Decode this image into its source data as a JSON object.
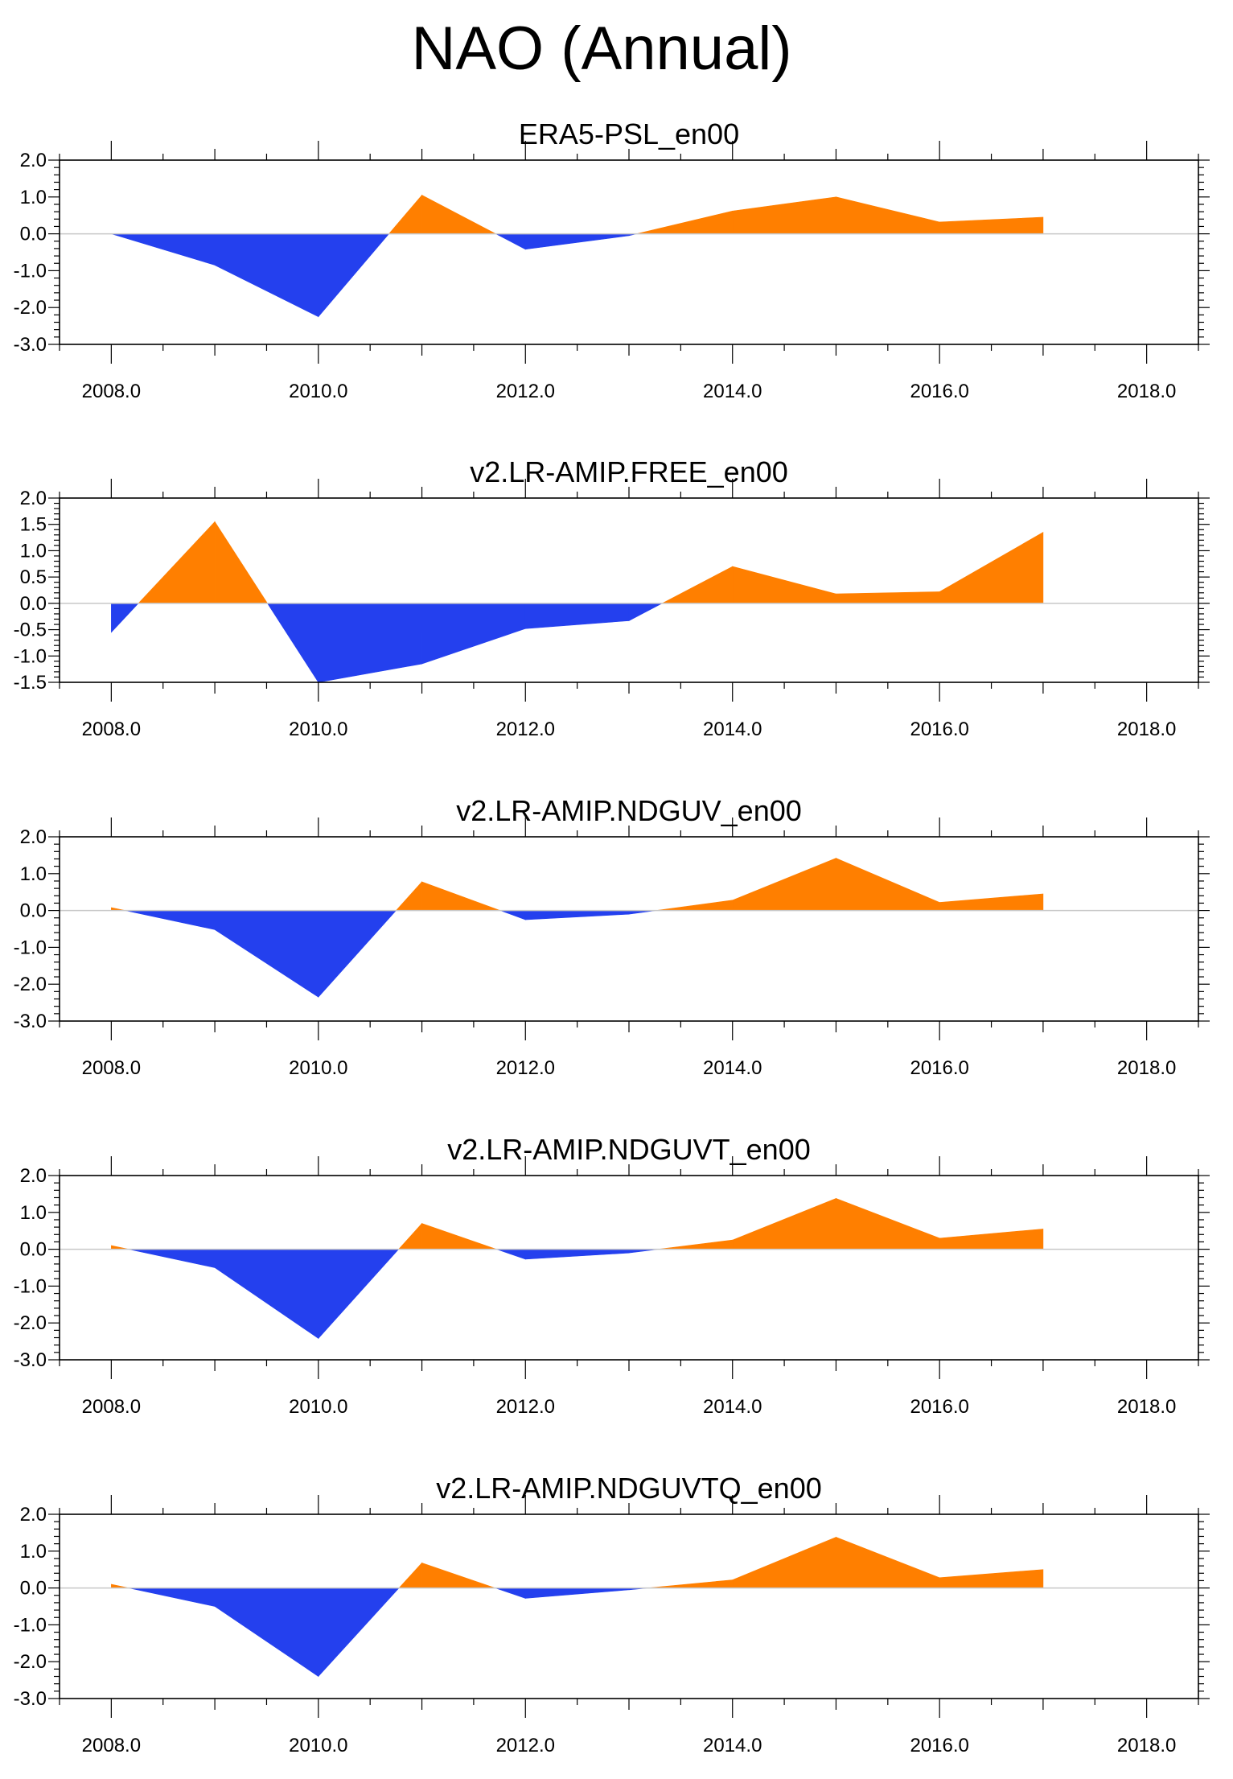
{
  "title": "NAO (Annual)",
  "colors": {
    "positive": "#ff7f00",
    "negative": "#2440ee",
    "zero_line": "#c8c8c8",
    "axis": "#000000"
  },
  "chart_data": [
    {
      "type": "area",
      "title": "ERA5-PSL_en00",
      "xlabel": "",
      "ylabel": "",
      "xlim": [
        2007.5,
        2018.5
      ],
      "ylim": [
        -3.0,
        2.0
      ],
      "x": [
        2008,
        2009,
        2010,
        2011,
        2012,
        2013,
        2014,
        2015,
        2016,
        2017
      ],
      "values": [
        0.0,
        -0.85,
        -2.25,
        1.05,
        -0.42,
        -0.05,
        0.62,
        1.0,
        0.32,
        0.45
      ],
      "yticks": [
        "2.0",
        "1.0",
        "0.0",
        "-1.0",
        "-2.0",
        "-3.0"
      ],
      "xticks": [
        "2008.0",
        "2010.0",
        "2012.0",
        "2014.0",
        "2016.0",
        "2018.0"
      ]
    },
    {
      "type": "area",
      "title": "v2.LR-AMIP.FREE_en00",
      "xlabel": "",
      "ylabel": "",
      "xlim": [
        2007.5,
        2018.5
      ],
      "ylim": [
        -1.5,
        2.0
      ],
      "x": [
        2008,
        2009,
        2010,
        2011,
        2012,
        2013,
        2014,
        2015,
        2016,
        2017
      ],
      "values": [
        -0.55,
        1.55,
        -1.5,
        -1.15,
        -0.48,
        -0.33,
        0.7,
        0.18,
        0.22,
        1.35
      ],
      "yticks": [
        "2.0",
        "1.5",
        "1.0",
        "0.5",
        "0.0",
        "-0.5",
        "-1.0",
        "-1.5"
      ],
      "xticks": [
        "2008.0",
        "2010.0",
        "2012.0",
        "2014.0",
        "2016.0",
        "2018.0"
      ]
    },
    {
      "type": "area",
      "title": "v2.LR-AMIP.NDGUV_en00",
      "xlabel": "",
      "ylabel": "",
      "xlim": [
        2007.5,
        2018.5
      ],
      "ylim": [
        -3.0,
        2.0
      ],
      "x": [
        2008,
        2009,
        2010,
        2011,
        2012,
        2013,
        2014,
        2015,
        2016,
        2017
      ],
      "values": [
        0.08,
        -0.52,
        -2.35,
        0.78,
        -0.25,
        -0.1,
        0.28,
        1.42,
        0.22,
        0.45
      ],
      "yticks": [
        "2.0",
        "1.0",
        "0.0",
        "-1.0",
        "-2.0",
        "-3.0"
      ],
      "xticks": [
        "2008.0",
        "2010.0",
        "2012.0",
        "2014.0",
        "2016.0",
        "2018.0"
      ]
    },
    {
      "type": "area",
      "title": "v2.LR-AMIP.NDGUVT_en00",
      "xlabel": "",
      "ylabel": "",
      "xlim": [
        2007.5,
        2018.5
      ],
      "ylim": [
        -3.0,
        2.0
      ],
      "x": [
        2008,
        2009,
        2010,
        2011,
        2012,
        2013,
        2014,
        2015,
        2016,
        2017
      ],
      "values": [
        0.1,
        -0.5,
        -2.42,
        0.7,
        -0.27,
        -0.1,
        0.25,
        1.38,
        0.3,
        0.55
      ],
      "yticks": [
        "2.0",
        "1.0",
        "0.0",
        "-1.0",
        "-2.0",
        "-3.0"
      ],
      "xticks": [
        "2008.0",
        "2010.0",
        "2012.0",
        "2014.0",
        "2016.0",
        "2018.0"
      ]
    },
    {
      "type": "area",
      "title": "v2.LR-AMIP.NDGUVTQ_en00",
      "xlabel": "",
      "ylabel": "",
      "xlim": [
        2007.5,
        2018.5
      ],
      "ylim": [
        -3.0,
        2.0
      ],
      "x": [
        2008,
        2009,
        2010,
        2011,
        2012,
        2013,
        2014,
        2015,
        2016,
        2017
      ],
      "values": [
        0.1,
        -0.5,
        -2.4,
        0.68,
        -0.28,
        -0.05,
        0.22,
        1.38,
        0.28,
        0.5
      ],
      "yticks": [
        "2.0",
        "1.0",
        "0.0",
        "-1.0",
        "-2.0",
        "-3.0"
      ],
      "xticks": [
        "2008.0",
        "2010.0",
        "2012.0",
        "2014.0",
        "2016.0",
        "2018.0"
      ]
    }
  ]
}
